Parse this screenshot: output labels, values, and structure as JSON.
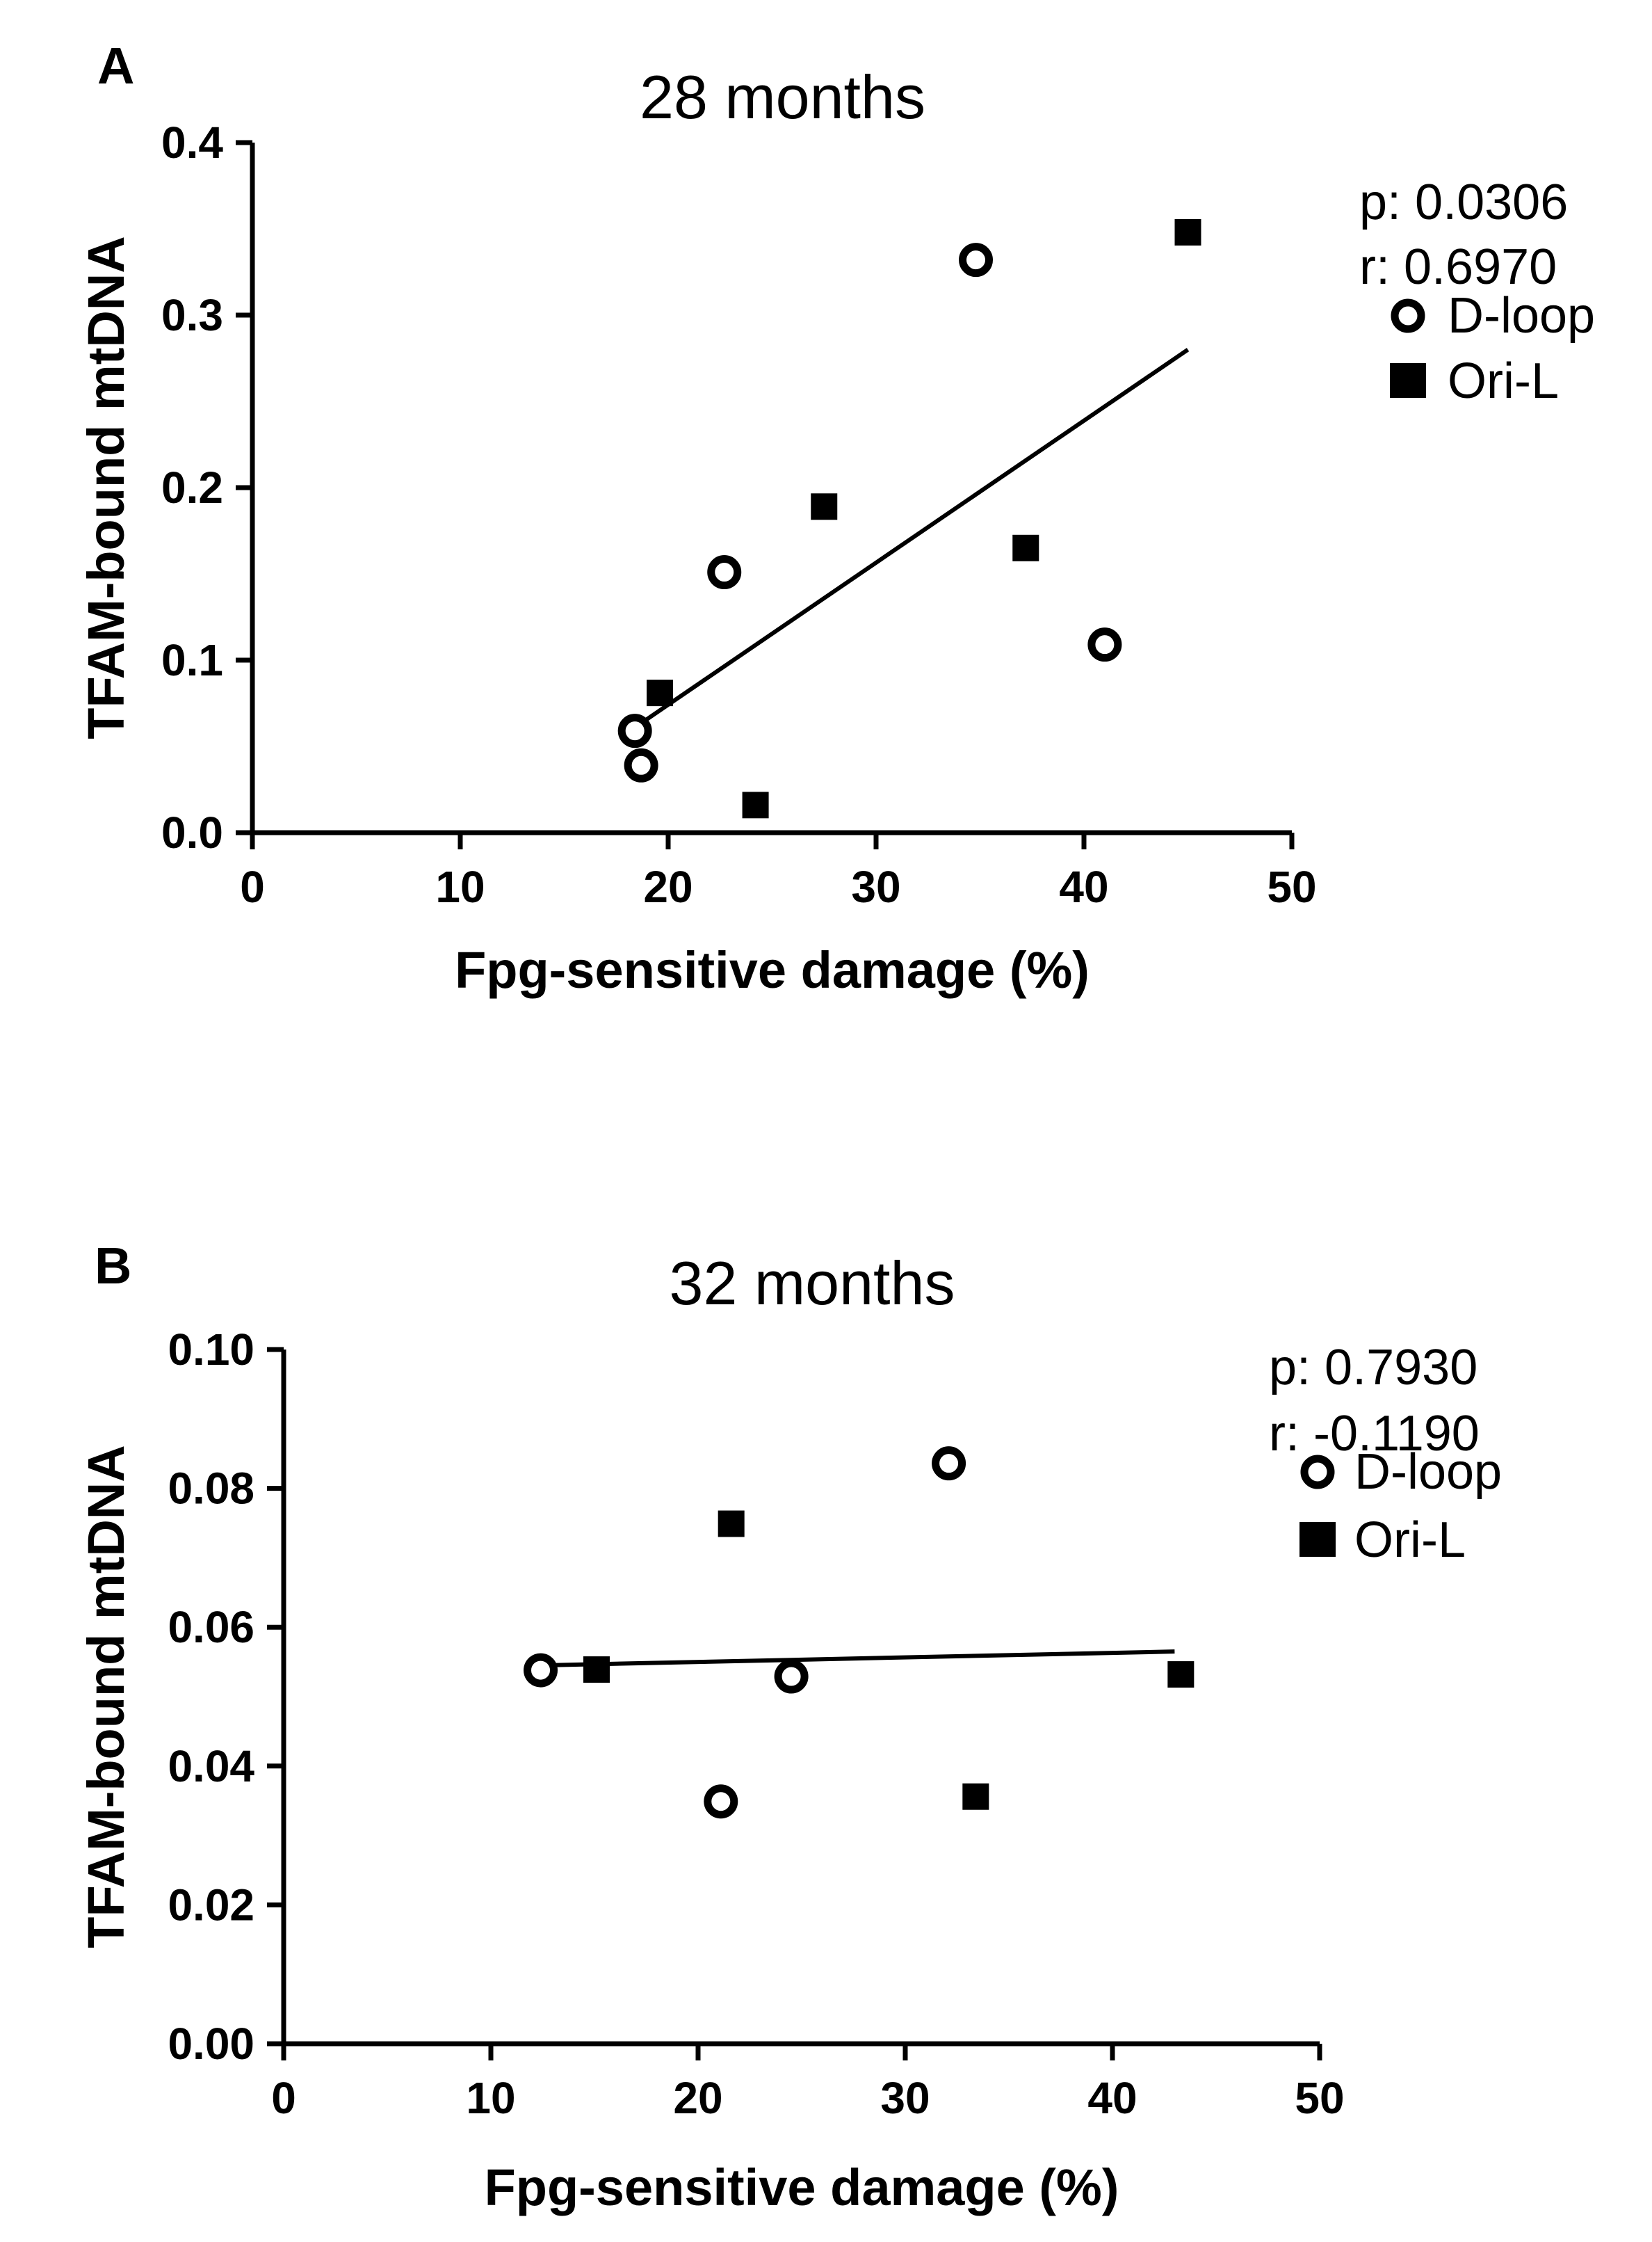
{
  "chart_data": [
    {
      "type": "scatter",
      "panel_label": "A",
      "title": "28 months",
      "xlabel": "Fpg-sensitive damage (%)",
      "ylabel": "TFAM-bound mtDNA",
      "xlim": [
        0,
        50
      ],
      "ylim": [
        0,
        0.4
      ],
      "xticks": [
        0,
        10,
        20,
        30,
        40,
        50
      ],
      "yticks": [
        0.0,
        0.1,
        0.2,
        0.3,
        0.4
      ],
      "xtick_labels": [
        "0",
        "10",
        "20",
        "30",
        "40",
        "50"
      ],
      "ytick_labels": [
        "0.0",
        "0.1",
        "0.2",
        "0.3",
        "0.4"
      ],
      "stats": {
        "p": "p: 0.0306",
        "r": "r: 0.6970"
      },
      "series": [
        {
          "name": "D-loop",
          "marker": "open-circle",
          "x": [
            18.4,
            18.7,
            22.7,
            34.8,
            41.0
          ],
          "y": [
            0.059,
            0.039,
            0.151,
            0.332,
            0.109
          ]
        },
        {
          "name": "Ori-L",
          "marker": "filled-square",
          "x": [
            19.6,
            24.2,
            27.5,
            37.2,
            45.0
          ],
          "y": [
            0.081,
            0.016,
            0.189,
            0.165,
            0.348
          ]
        }
      ],
      "fit_line": {
        "x": [
          18.4,
          45.0
        ],
        "y": [
          0.061,
          0.28
        ]
      }
    },
    {
      "type": "scatter",
      "panel_label": "B",
      "title": "32  months",
      "xlabel": "Fpg-sensitive damage (%)",
      "ylabel": "TFAM-bound mtDNA",
      "xlim": [
        0,
        50
      ],
      "ylim": [
        0,
        0.1
      ],
      "xticks": [
        0,
        10,
        20,
        30,
        40,
        50
      ],
      "yticks": [
        0.0,
        0.02,
        0.04,
        0.06,
        0.08,
        0.1
      ],
      "xtick_labels": [
        "0",
        "10",
        "20",
        "30",
        "40",
        "50"
      ],
      "ytick_labels": [
        "0.00",
        "0.02",
        "0.04",
        "0.06",
        "0.08",
        "0.10"
      ],
      "stats": {
        "p": "p: 0.7930",
        "r": "r: -0.1190"
      },
      "series": [
        {
          "name": "D-loop",
          "marker": "open-circle",
          "x": [
            12.4,
            21.1,
            24.5,
            32.1
          ],
          "y": [
            0.0538,
            0.0349,
            0.0529,
            0.0836
          ]
        },
        {
          "name": "Ori-L",
          "marker": "filled-square",
          "x": [
            15.1,
            21.6,
            33.4,
            43.3
          ],
          "y": [
            0.0539,
            0.0749,
            0.0356,
            0.0532
          ]
        }
      ],
      "fit_line": {
        "x": [
          12.4,
          43.0
        ],
        "y": [
          0.0545,
          0.0565
        ]
      }
    }
  ]
}
